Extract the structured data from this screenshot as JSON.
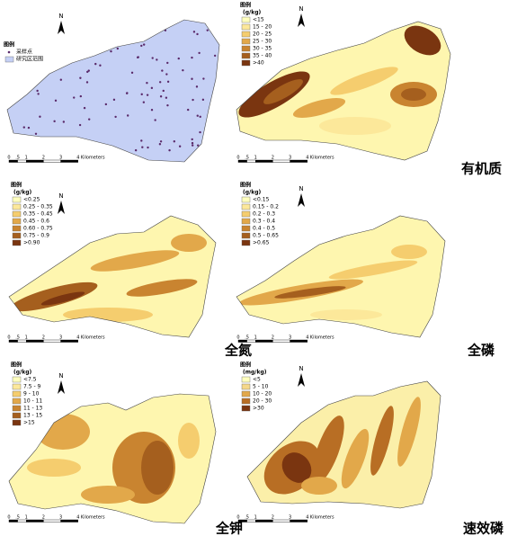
{
  "north": "N",
  "scale_labels": [
    "0",
    ".5",
    "1",
    "2",
    "3",
    "4",
    "Kilometers"
  ],
  "panels": [
    {
      "legend_title": "图例",
      "legend": [
        {
          "label": "采样点",
          "color": "#5a2a6a"
        },
        {
          "label": "研究区范围",
          "color": "#c5d0f5"
        }
      ]
    },
    {
      "legend_title": "图例",
      "unit": "(g/kg)",
      "caption": "有机质",
      "legend": [
        {
          "label": "<15",
          "color": "#ffffbe"
        },
        {
          "label": "15 - 20",
          "color": "#fce89a"
        },
        {
          "label": "20 - 25",
          "color": "#f5cd6e"
        },
        {
          "label": "25 - 30",
          "color": "#e2a84a"
        },
        {
          "label": "30 - 35",
          "color": "#c98430"
        },
        {
          "label": "35 - 40",
          "color": "#a55f1e"
        },
        {
          "label": ">40",
          "color": "#7a3510"
        }
      ]
    },
    {
      "legend_title": "图例",
      "unit": "(g/kg)",
      "caption": "全氮",
      "legend": [
        {
          "label": "<0.25",
          "color": "#ffffbe"
        },
        {
          "label": "0.25 - 0.35",
          "color": "#fce89a"
        },
        {
          "label": "0.35 - 0.45",
          "color": "#f5cd6e"
        },
        {
          "label": "0.45 - 0.6",
          "color": "#e2a84a"
        },
        {
          "label": "0.60 - 0.75",
          "color": "#c98430"
        },
        {
          "label": "0.75 - 0.9",
          "color": "#a55f1e"
        },
        {
          "label": ">0.90",
          "color": "#7a3510"
        }
      ]
    },
    {
      "legend_title": "图例",
      "unit": "(g/kg)",
      "caption": "全磷",
      "legend": [
        {
          "label": "<0.15",
          "color": "#ffffbe"
        },
        {
          "label": "0.15 - 0.2",
          "color": "#fce89a"
        },
        {
          "label": "0.2 - 0.3",
          "color": "#f5cd6e"
        },
        {
          "label": "0.3 - 0.4",
          "color": "#e2a84a"
        },
        {
          "label": "0.4 - 0.5",
          "color": "#c98430"
        },
        {
          "label": "0.5 - 0.65",
          "color": "#a55f1e"
        },
        {
          "label": ">0.65",
          "color": "#7a3510"
        }
      ]
    },
    {
      "legend_title": "图例",
      "unit": "(g/kg)",
      "caption": "全钾",
      "legend": [
        {
          "label": "<7.5",
          "color": "#ffffbe"
        },
        {
          "label": "7.5 - 9",
          "color": "#fce89a"
        },
        {
          "label": "9 - 10",
          "color": "#f5cd6e"
        },
        {
          "label": "10 - 11",
          "color": "#e2a84a"
        },
        {
          "label": "11 - 13",
          "color": "#c98430"
        },
        {
          "label": "13 - 15",
          "color": "#a55f1e"
        },
        {
          "label": ">15",
          "color": "#7a3510"
        }
      ]
    },
    {
      "legend_title": "图例",
      "unit": "(mg/kg)",
      "caption": "速效磷",
      "legend": [
        {
          "label": "<5",
          "color": "#ffffbe"
        },
        {
          "label": "5 - 10",
          "color": "#f5d88a"
        },
        {
          "label": "10 - 20",
          "color": "#e2a84a"
        },
        {
          "label": "20 - 30",
          "color": "#b86e24"
        },
        {
          "label": ">30",
          "color": "#7a3510"
        }
      ]
    }
  ]
}
